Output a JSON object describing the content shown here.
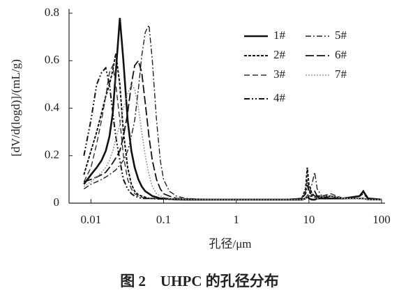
{
  "chart_data": {
    "type": "line",
    "xlabel": "孔径/μm",
    "ylabel": "[dV/d(logd)]/(mL/g)",
    "caption": "图 2　UHPC 的孔径分布",
    "xscale": "log",
    "xlim": [
      0.005,
      100
    ],
    "xticks": [
      0.01,
      0.1,
      1,
      10,
      100
    ],
    "ylim": [
      0,
      0.8
    ],
    "yticks": [
      0,
      0.2,
      0.4,
      0.6,
      0.8
    ],
    "x": [
      0.008,
      0.01,
      0.012,
      0.014,
      0.016,
      0.018,
      0.02,
      0.022,
      0.025,
      0.028,
      0.032,
      0.036,
      0.04,
      0.045,
      0.05,
      0.056,
      0.063,
      0.07,
      0.08,
      0.09,
      0.1,
      0.12,
      0.15,
      0.2,
      0.5,
      1,
      5,
      8,
      9,
      9.5,
      10,
      11,
      12,
      13,
      15,
      20,
      30,
      50,
      56,
      65,
      100
    ],
    "series": [
      {
        "name": "1#",
        "color": "#111",
        "dash": "",
        "width": 2.6,
        "values": [
          0.08,
          0.12,
          0.15,
          0.18,
          0.22,
          0.28,
          0.38,
          0.55,
          0.78,
          0.6,
          0.35,
          0.22,
          0.15,
          0.1,
          0.07,
          0.05,
          0.04,
          0.03,
          0.025,
          0.02,
          0.02,
          0.018,
          0.016,
          0.015,
          0.015,
          0.015,
          0.015,
          0.015,
          0.02,
          0.03,
          0.02,
          0.015,
          0.015,
          0.02,
          0.02,
          0.02,
          0.02,
          0.03,
          0.05,
          0.02,
          0.015
        ]
      },
      {
        "name": "2#",
        "color": "#111",
        "dash": "4,2",
        "width": 2,
        "values": [
          0.12,
          0.22,
          0.3,
          0.38,
          0.45,
          0.5,
          0.56,
          0.63,
          0.5,
          0.3,
          0.15,
          0.08,
          0.05,
          0.035,
          0.03,
          0.025,
          0.02,
          0.02,
          0.02,
          0.02,
          0.02,
          0.018,
          0.016,
          0.015,
          0.015,
          0.015,
          0.015,
          0.02,
          0.06,
          0.15,
          0.08,
          0.04,
          0.03,
          0.03,
          0.025,
          0.03,
          0.02,
          0.02,
          0.02,
          0.015,
          0.015
        ]
      },
      {
        "name": "3#",
        "color": "#333",
        "dash": "8,4",
        "width": 1.4,
        "values": [
          0.09,
          0.15,
          0.25,
          0.35,
          0.45,
          0.55,
          0.58,
          0.5,
          0.35,
          0.2,
          0.1,
          0.06,
          0.04,
          0.03,
          0.025,
          0.02,
          0.02,
          0.02,
          0.018,
          0.018,
          0.017,
          0.016,
          0.015,
          0.015,
          0.015,
          0.015,
          0.015,
          0.02,
          0.05,
          0.1,
          0.06,
          0.03,
          0.025,
          0.025,
          0.03,
          0.04,
          0.02,
          0.02,
          0.02,
          0.015,
          0.015
        ]
      },
      {
        "name": "4#",
        "color": "#111",
        "dash": "8,3,2,3,2,3",
        "width": 2,
        "values": [
          0.2,
          0.35,
          0.5,
          0.55,
          0.57,
          0.5,
          0.38,
          0.28,
          0.18,
          0.1,
          0.06,
          0.04,
          0.03,
          0.025,
          0.02,
          0.02,
          0.02,
          0.02,
          0.018,
          0.018,
          0.017,
          0.016,
          0.015,
          0.015,
          0.015,
          0.015,
          0.015,
          0.02,
          0.04,
          0.08,
          0.05,
          0.03,
          0.03,
          0.03,
          0.03,
          0.03,
          0.02,
          0.02,
          0.02,
          0.015,
          0.015
        ]
      },
      {
        "name": "5#",
        "color": "#222",
        "dash": "8,3,2,3",
        "width": 1.4,
        "values": [
          0.06,
          0.08,
          0.09,
          0.1,
          0.11,
          0.12,
          0.13,
          0.14,
          0.16,
          0.18,
          0.22,
          0.28,
          0.35,
          0.48,
          0.62,
          0.72,
          0.75,
          0.6,
          0.35,
          0.18,
          0.1,
          0.05,
          0.03,
          0.02,
          0.015,
          0.015,
          0.015,
          0.015,
          0.02,
          0.03,
          0.04,
          0.08,
          0.13,
          0.06,
          0.03,
          0.03,
          0.02,
          0.02,
          0.02,
          0.015,
          0.015
        ]
      },
      {
        "name": "6#",
        "color": "#111",
        "dash": "12,4",
        "width": 1.8,
        "values": [
          0.09,
          0.1,
          0.11,
          0.12,
          0.13,
          0.15,
          0.17,
          0.19,
          0.22,
          0.28,
          0.38,
          0.5,
          0.58,
          0.6,
          0.55,
          0.42,
          0.28,
          0.18,
          0.1,
          0.06,
          0.04,
          0.03,
          0.02,
          0.018,
          0.015,
          0.015,
          0.015,
          0.015,
          0.02,
          0.03,
          0.03,
          0.03,
          0.05,
          0.03,
          0.02,
          0.03,
          0.02,
          0.03,
          0.04,
          0.02,
          0.015
        ]
      },
      {
        "name": "7#",
        "color": "#999",
        "dash": "2,2",
        "width": 1.6,
        "values": [
          0.07,
          0.09,
          0.11,
          0.13,
          0.15,
          0.18,
          0.22,
          0.27,
          0.33,
          0.4,
          0.46,
          0.5,
          0.48,
          0.4,
          0.3,
          0.2,
          0.12,
          0.07,
          0.04,
          0.03,
          0.025,
          0.02,
          0.018,
          0.016,
          0.015,
          0.015,
          0.015,
          0.015,
          0.02,
          0.03,
          0.03,
          0.02,
          0.02,
          0.02,
          0.03,
          0.03,
          0.02,
          0.02,
          0.02,
          0.015,
          0.015
        ]
      }
    ]
  }
}
